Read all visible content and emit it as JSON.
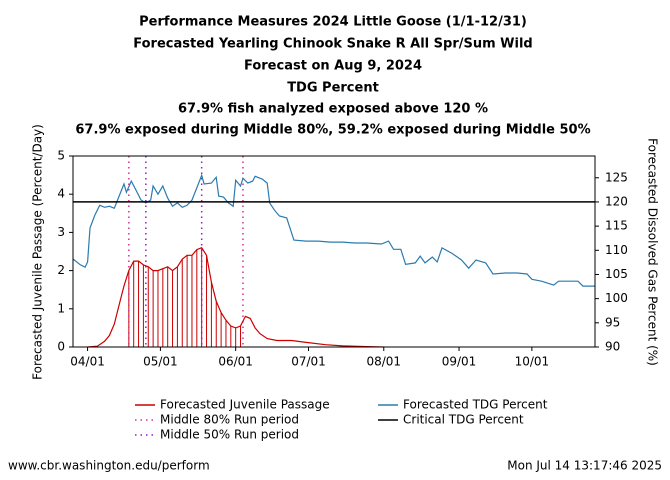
{
  "chart_data": {
    "type": "line",
    "title": [
      "Performance Measures 2024 Little Goose (1/1-12/31)",
      "Forecasted Yearling Chinook Snake R All Spr/Sum Wild",
      "Forecast on Aug 9, 2024",
      "TDG Percent",
      "67.9% fish analyzed exposed above 120 %",
      "67.9% exposed during Middle 80%, 59.2% exposed during Middle 50%"
    ],
    "ylabel": "Forecasted Juvenile Passage (Percent/Day)",
    "y2label": "Forecasted Dissolved Gas Percent (%)",
    "xlim": [
      "03/26",
      "10/27"
    ],
    "xticks": [
      "04/01",
      "05/01",
      "06/01",
      "07/01",
      "08/01",
      "09/01",
      "10/01"
    ],
    "ylim": [
      0,
      5
    ],
    "yticks": [
      0,
      1,
      2,
      3,
      4,
      5
    ],
    "y2lim": [
      90,
      129.5
    ],
    "y2ticks": [
      90,
      95,
      100,
      105,
      110,
      115,
      120,
      125
    ],
    "series": [
      {
        "name": "Forecasted Juvenile Passage",
        "color": "#cc0000",
        "x": [
          "04/01",
          "04/05",
          "04/08",
          "04/10",
          "04/12",
          "04/14",
          "04/16",
          "04/18",
          "04/20",
          "04/22",
          "04/24",
          "04/26",
          "04/28",
          "04/30",
          "05/02",
          "05/04",
          "05/06",
          "05/08",
          "05/10",
          "05/12",
          "05/14",
          "05/16",
          "05/18",
          "05/20",
          "05/22",
          "05/24",
          "05/26",
          "05/28",
          "05/30",
          "06/01",
          "06/03",
          "06/05",
          "06/07",
          "06/09",
          "06/11",
          "06/14",
          "06/18",
          "06/24",
          "06/30",
          "07/08",
          "07/15",
          "07/25",
          "08/01"
        ],
        "values": [
          0,
          0.02,
          0.15,
          0.3,
          0.6,
          1.1,
          1.6,
          2.0,
          2.25,
          2.25,
          2.15,
          2.1,
          2.0,
          2.0,
          2.05,
          2.1,
          2.0,
          2.1,
          2.3,
          2.4,
          2.4,
          2.55,
          2.6,
          2.4,
          1.7,
          1.2,
          0.9,
          0.7,
          0.55,
          0.5,
          0.55,
          0.8,
          0.75,
          0.5,
          0.35,
          0.22,
          0.17,
          0.17,
          0.12,
          0.06,
          0.03,
          0.01,
          0
        ]
      },
      {
        "name": "Forecasted TDG Percent",
        "color": "#2b7bb0",
        "axis": "y2",
        "x": [
          "03/26",
          "03/29",
          "03/31",
          "04/01",
          "04/02",
          "04/04",
          "04/06",
          "04/08",
          "04/10",
          "04/12",
          "04/14",
          "04/16",
          "04/17",
          "04/19",
          "04/21",
          "04/23",
          "04/25",
          "04/27",
          "04/28",
          "04/30",
          "05/02",
          "05/04",
          "05/06",
          "05/08",
          "05/10",
          "05/12",
          "05/14",
          "05/16",
          "05/18",
          "05/19",
          "05/22",
          "05/24",
          "05/25",
          "05/27",
          "05/29",
          "05/31",
          "06/01",
          "06/03",
          "06/04",
          "06/06",
          "06/08",
          "06/09",
          "06/12",
          "06/14",
          "06/15",
          "06/17",
          "06/19",
          "06/22",
          "06/25",
          "06/30",
          "07/05",
          "07/10",
          "07/15",
          "07/20",
          "07/25",
          "07/31",
          "08/03",
          "08/05",
          "08/08",
          "08/10",
          "08/14",
          "08/16",
          "08/18",
          "08/21",
          "08/23",
          "08/25",
          "08/29",
          "09/02",
          "09/05",
          "09/08",
          "09/12",
          "09/15",
          "09/20",
          "09/25",
          "09/29",
          "10/01",
          "10/05",
          "10/10",
          "10/12",
          "10/20",
          "10/22",
          "10/27"
        ],
        "values": [
          108.2,
          107,
          106.5,
          107.6,
          114.6,
          117.3,
          119.3,
          118.9,
          119.1,
          118.7,
          121.2,
          123.7,
          122,
          124.3,
          122.4,
          120.4,
          119.8,
          120.4,
          123.3,
          121.6,
          123.3,
          120.8,
          119.1,
          119.8,
          118.9,
          119.3,
          120.4,
          122.9,
          125.5,
          123.7,
          123.9,
          125.1,
          121.2,
          121,
          119.8,
          119.1,
          124.5,
          123.3,
          124.9,
          123.9,
          124.3,
          125.3,
          124.7,
          123.9,
          119.8,
          118.3,
          117.1,
          116.7,
          112.1,
          111.9,
          111.9,
          111.7,
          111.7,
          111.5,
          111.5,
          111.3,
          111.9,
          110.2,
          110.2,
          107.1,
          107.4,
          108.8,
          107.4,
          108.6,
          107.6,
          110.5,
          109.4,
          108,
          106.3,
          108,
          107.4,
          105.1,
          105.3,
          105.3,
          105.1,
          104,
          103.6,
          102.8,
          103.6,
          103.6,
          102.6,
          102.6
        ]
      },
      {
        "name": "Critical TDG Percent",
        "color": "#000000",
        "axis": "y2",
        "value": 120
      }
    ],
    "periods": [
      {
        "name": "Middle 80% Run period",
        "color": "#d0309a",
        "x": [
          "04/18",
          "06/04"
        ]
      },
      {
        "name": "Middle 50% Run period",
        "color": "#9a1ad0",
        "x": [
          "04/25",
          "05/18"
        ]
      }
    ],
    "footer_left": "www.cbr.washington.edu/perform",
    "footer_right": "Mon Jul 14 13:17:46 2025"
  }
}
